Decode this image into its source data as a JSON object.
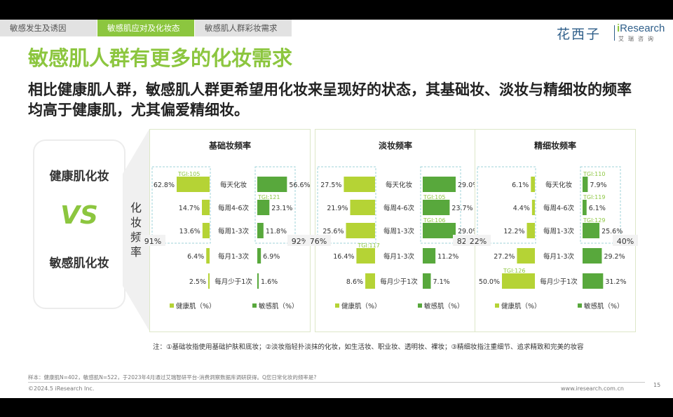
{
  "tabs": [
    {
      "label": "敏感发生及诱因",
      "active": false
    },
    {
      "label": "敏感肌应对及化妆态度",
      "active": true
    },
    {
      "label": "敏感肌人群彩妆需求",
      "active": false
    }
  ],
  "logo": {
    "huaxizi": "花西子",
    "ire": "i",
    "research": "Research",
    "sub": "艾瑞咨询"
  },
  "title": "敏感肌人群有更多的化妆需求",
  "subtitle": "相比健康肌人群，敏感肌人群更希望用化妆来呈现好的状态，其基础妆、淡妆与精细妆的频率均高于健康肌，尤其偏爱精细妆。",
  "vs": {
    "top": "健康肌化妆",
    "middle": "VS",
    "bottom": "敏感肌化妆"
  },
  "freq_label": "化妆频率",
  "colors": {
    "healthy": "#b5d335",
    "sensitive": "#58a83c",
    "accent": "#8cc63f",
    "tgi": "#8cc63f",
    "dash": "#9fd3d8"
  },
  "chart_data": [
    {
      "type": "bar",
      "title": "基础妆频率",
      "categories": [
        "每天化妆",
        "每周4-6次",
        "每周1-3次",
        "每月1-3次",
        "每月少于1次"
      ],
      "series": [
        {
          "name": "健康肌（%）",
          "values": [
            62.8,
            14.7,
            13.6,
            6.4,
            2.5
          ],
          "labels": [
            "62.8%",
            "14.7%",
            "13.6%",
            "6.4%",
            "2.5%"
          ]
        },
        {
          "name": "敏感肌（%）",
          "values": [
            56.6,
            23.1,
            11.8,
            6.9,
            1.6
          ],
          "labels": [
            "56.6%",
            "23.1%",
            "11.8%",
            "6.9%",
            "1.6%"
          ]
        }
      ],
      "tgi": [
        {
          "side": "healthy",
          "index": 0,
          "label": "TGI:105"
        },
        {
          "side": "sensitive",
          "index": 1,
          "label": "TGI:121"
        }
      ],
      "group_total": {
        "healthy": "91%",
        "sensitive": "92%"
      },
      "group_rows": [
        0,
        1,
        2
      ]
    },
    {
      "type": "bar",
      "title": "淡妆频率",
      "categories": [
        "每天化妆",
        "每周4-6次",
        "每周1-3次",
        "每月1-3次",
        "每月少于1次"
      ],
      "series": [
        {
          "name": "健康肌（%）",
          "values": [
            27.5,
            21.9,
            25.6,
            16.4,
            8.6
          ],
          "labels": [
            "27.5%",
            "21.9%",
            "25.6%",
            "16.4%",
            "8.6%"
          ]
        },
        {
          "name": "敏感肌（%）",
          "values": [
            29.0,
            23.7,
            29.0,
            11.2,
            7.1
          ],
          "labels": [
            "29.0%",
            "23.7%",
            "29.0%",
            "11.2%",
            "7.1%"
          ]
        }
      ],
      "tgi": [
        {
          "side": "sensitive",
          "index": 1,
          "label": "TGI:105"
        },
        {
          "side": "sensitive",
          "index": 2,
          "label": "TGI:106"
        },
        {
          "side": "healthy",
          "index": 3,
          "label": "TGI:117"
        }
      ],
      "group_total": {
        "healthy": "76%",
        "sensitive": "82%"
      },
      "group_rows": [
        0,
        1,
        2
      ]
    },
    {
      "type": "bar",
      "title": "精细妆频率",
      "categories": [
        "每天化妆",
        "每周4-6次",
        "每周1-3次",
        "每月1-3次",
        "每月少于1次"
      ],
      "series": [
        {
          "name": "健康肌（%）",
          "values": [
            6.1,
            4.4,
            12.2,
            27.2,
            50.0
          ],
          "labels": [
            "6.1%",
            "4.4%",
            "12.2%",
            "27.2%",
            "50.0%"
          ]
        },
        {
          "name": "敏感肌（%）",
          "values": [
            7.9,
            6.1,
            25.6,
            29.2,
            31.2
          ],
          "labels": [
            "7.9%",
            "6.1%",
            "25.6%",
            "29.2%",
            "31.2%"
          ]
        }
      ],
      "tgi": [
        {
          "side": "sensitive",
          "index": 0,
          "label": "TGI:110"
        },
        {
          "side": "sensitive",
          "index": 1,
          "label": "TGI:119"
        },
        {
          "side": "sensitive",
          "index": 2,
          "label": "TGI:129"
        },
        {
          "side": "healthy",
          "index": 4,
          "label": "TGI:126"
        }
      ],
      "group_total": {
        "healthy": "22%",
        "sensitive": "40%"
      },
      "group_rows": [
        0,
        1,
        2
      ]
    }
  ],
  "note": "注：①基础妆指使用基础护肤和底妆；②淡妆指轻扑淡抹的化妆，如生活妆、职业妆、透明妆、裸妆；③精细妆指注重细节、追求精致和完美的妆容",
  "sample": "样本：健康肌N=402，敏感肌N=522，于2023年4月通过艾瑞智研平台-消费洞察数据库调研获得。Q您日常化妆的频率是?",
  "footer": {
    "copyright": "©2024.5 iResearch Inc.",
    "website": "www.iresearch.com.cn",
    "page": "15"
  }
}
